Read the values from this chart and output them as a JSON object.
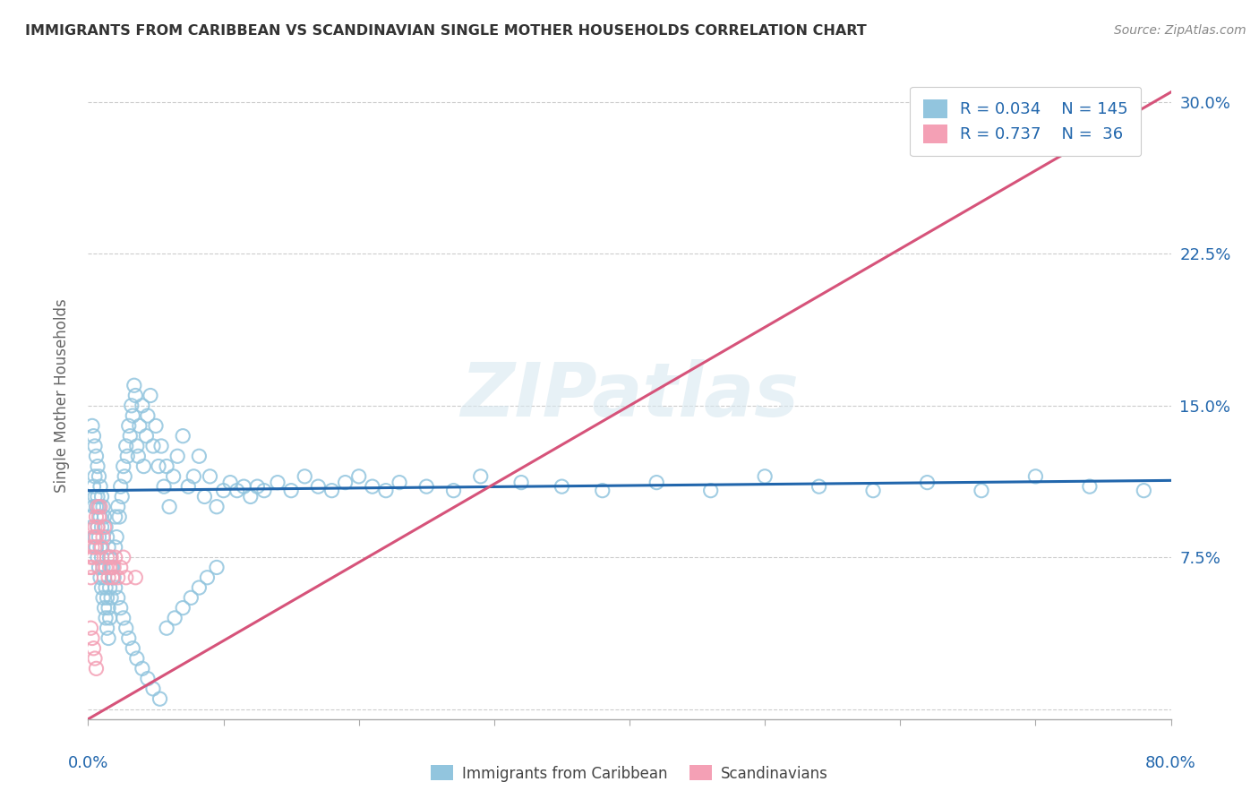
{
  "title": "IMMIGRANTS FROM CARIBBEAN VS SCANDINAVIAN SINGLE MOTHER HOUSEHOLDS CORRELATION CHART",
  "source": "Source: ZipAtlas.com",
  "ylabel": "Single Mother Households",
  "xlim": [
    0.0,
    0.8
  ],
  "ylim": [
    -0.005,
    0.315
  ],
  "yticks": [
    0.0,
    0.075,
    0.15,
    0.225,
    0.3
  ],
  "ytick_labels": [
    "",
    "7.5%",
    "15.0%",
    "22.5%",
    "30.0%"
  ],
  "blue_R": "0.034",
  "blue_N": "145",
  "pink_R": "0.737",
  "pink_N": "36",
  "blue_color": "#92c5de",
  "pink_color": "#f4a0b5",
  "blue_line_color": "#2166ac",
  "pink_line_color": "#d6537a",
  "watermark": "ZIPatlas",
  "blue_line_y0": 0.108,
  "blue_line_y1": 0.113,
  "pink_line_x0": 0.0,
  "pink_line_y0": -0.005,
  "pink_line_x1": 0.8,
  "pink_line_y1": 0.305,
  "blue_scatter_x": [
    0.002,
    0.003,
    0.004,
    0.004,
    0.005,
    0.005,
    0.005,
    0.006,
    0.006,
    0.007,
    0.007,
    0.007,
    0.008,
    0.008,
    0.008,
    0.009,
    0.009,
    0.009,
    0.01,
    0.01,
    0.01,
    0.011,
    0.011,
    0.012,
    0.012,
    0.013,
    0.013,
    0.014,
    0.014,
    0.015,
    0.015,
    0.016,
    0.016,
    0.017,
    0.018,
    0.019,
    0.02,
    0.02,
    0.021,
    0.022,
    0.023,
    0.024,
    0.025,
    0.026,
    0.027,
    0.028,
    0.029,
    0.03,
    0.031,
    0.032,
    0.033,
    0.034,
    0.035,
    0.036,
    0.037,
    0.038,
    0.04,
    0.041,
    0.043,
    0.044,
    0.046,
    0.048,
    0.05,
    0.052,
    0.054,
    0.056,
    0.058,
    0.06,
    0.063,
    0.066,
    0.07,
    0.074,
    0.078,
    0.082,
    0.086,
    0.09,
    0.095,
    0.1,
    0.105,
    0.11,
    0.115,
    0.12,
    0.125,
    0.13,
    0.14,
    0.15,
    0.16,
    0.17,
    0.18,
    0.19,
    0.2,
    0.21,
    0.22,
    0.23,
    0.25,
    0.27,
    0.29,
    0.32,
    0.35,
    0.38,
    0.42,
    0.46,
    0.5,
    0.54,
    0.58,
    0.62,
    0.66,
    0.7,
    0.74,
    0.78,
    0.003,
    0.004,
    0.005,
    0.006,
    0.007,
    0.008,
    0.009,
    0.01,
    0.011,
    0.012,
    0.013,
    0.014,
    0.015,
    0.016,
    0.017,
    0.018,
    0.02,
    0.022,
    0.024,
    0.026,
    0.028,
    0.03,
    0.033,
    0.036,
    0.04,
    0.044,
    0.048,
    0.053,
    0.058,
    0.064,
    0.07,
    0.076,
    0.082,
    0.088,
    0.095
  ],
  "blue_scatter_y": [
    0.095,
    0.09,
    0.1,
    0.11,
    0.085,
    0.105,
    0.115,
    0.08,
    0.1,
    0.075,
    0.09,
    0.105,
    0.07,
    0.085,
    0.1,
    0.065,
    0.08,
    0.095,
    0.06,
    0.075,
    0.09,
    0.055,
    0.07,
    0.05,
    0.065,
    0.045,
    0.06,
    0.04,
    0.055,
    0.035,
    0.05,
    0.045,
    0.06,
    0.055,
    0.07,
    0.065,
    0.08,
    0.095,
    0.085,
    0.1,
    0.095,
    0.11,
    0.105,
    0.12,
    0.115,
    0.13,
    0.125,
    0.14,
    0.135,
    0.15,
    0.145,
    0.16,
    0.155,
    0.13,
    0.125,
    0.14,
    0.15,
    0.12,
    0.135,
    0.145,
    0.155,
    0.13,
    0.14,
    0.12,
    0.13,
    0.11,
    0.12,
    0.1,
    0.115,
    0.125,
    0.135,
    0.11,
    0.115,
    0.125,
    0.105,
    0.115,
    0.1,
    0.108,
    0.112,
    0.108,
    0.11,
    0.105,
    0.11,
    0.108,
    0.112,
    0.108,
    0.115,
    0.11,
    0.108,
    0.112,
    0.115,
    0.11,
    0.108,
    0.112,
    0.11,
    0.108,
    0.115,
    0.112,
    0.11,
    0.108,
    0.112,
    0.108,
    0.115,
    0.11,
    0.108,
    0.112,
    0.108,
    0.115,
    0.11,
    0.108,
    0.14,
    0.135,
    0.13,
    0.125,
    0.12,
    0.115,
    0.11,
    0.105,
    0.1,
    0.095,
    0.09,
    0.085,
    0.08,
    0.075,
    0.07,
    0.065,
    0.06,
    0.055,
    0.05,
    0.045,
    0.04,
    0.035,
    0.03,
    0.025,
    0.02,
    0.015,
    0.01,
    0.005,
    0.04,
    0.045,
    0.05,
    0.055,
    0.06,
    0.065,
    0.07
  ],
  "pink_scatter_x": [
    0.001,
    0.002,
    0.002,
    0.003,
    0.003,
    0.004,
    0.004,
    0.005,
    0.005,
    0.006,
    0.006,
    0.007,
    0.007,
    0.008,
    0.009,
    0.01,
    0.011,
    0.012,
    0.013,
    0.014,
    0.015,
    0.016,
    0.017,
    0.018,
    0.019,
    0.02,
    0.022,
    0.024,
    0.026,
    0.028,
    0.002,
    0.003,
    0.004,
    0.005,
    0.006,
    0.035
  ],
  "pink_scatter_y": [
    0.07,
    0.075,
    0.065,
    0.08,
    0.07,
    0.085,
    0.075,
    0.09,
    0.08,
    0.095,
    0.085,
    0.1,
    0.09,
    0.095,
    0.1,
    0.08,
    0.085,
    0.09,
    0.07,
    0.075,
    0.065,
    0.07,
    0.075,
    0.065,
    0.07,
    0.075,
    0.065,
    0.07,
    0.075,
    0.065,
    0.04,
    0.035,
    0.03,
    0.025,
    0.02,
    0.065
  ]
}
